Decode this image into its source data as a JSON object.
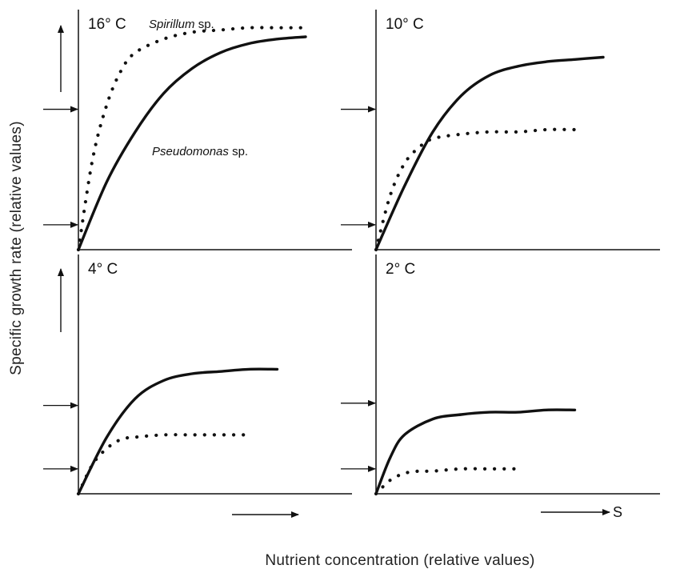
{
  "chart_data": {
    "type": "line",
    "ylabel": "Specific growth rate (relative values)",
    "xlabel": "Nutrient concentration (relative values)",
    "x_axis_symbol": "S",
    "xlim": [
      0,
      1
    ],
    "ylim": [
      0,
      1
    ],
    "panels": [
      {
        "title": "16° C",
        "annotations": [
          {
            "text": "Spirillum",
            "suffix": "sp.",
            "series": "dotted"
          },
          {
            "text": "Pseudomonas",
            "suffix": "sp.",
            "series": "solid"
          }
        ],
        "y_markers": [
          0.11,
          0.62
        ],
        "series": [
          {
            "style": "solid",
            "x": [
              0.0,
              0.1,
              0.2,
              0.3,
              0.4,
              0.5,
              0.6,
              0.7,
              0.8
            ],
            "y": [
              0.0,
              0.3,
              0.52,
              0.69,
              0.8,
              0.87,
              0.91,
              0.93,
              0.94
            ]
          },
          {
            "style": "dotted",
            "x": [
              0.0,
              0.05,
              0.1,
              0.15,
              0.2,
              0.3,
              0.4,
              0.5,
              0.6,
              0.7,
              0.8
            ],
            "y": [
              0.0,
              0.4,
              0.64,
              0.79,
              0.87,
              0.93,
              0.96,
              0.97,
              0.98,
              0.98,
              0.98
            ]
          }
        ]
      },
      {
        "title": "10° C",
        "annotations": [],
        "y_markers": [
          0.11,
          0.62
        ],
        "series": [
          {
            "style": "solid",
            "x": [
              0.0,
              0.1,
              0.2,
              0.3,
              0.4,
              0.5,
              0.6,
              0.7,
              0.8
            ],
            "y": [
              0.0,
              0.28,
              0.52,
              0.68,
              0.77,
              0.81,
              0.83,
              0.84,
              0.85
            ]
          },
          {
            "style": "dotted",
            "x": [
              0.0,
              0.05,
              0.1,
              0.15,
              0.2,
              0.3,
              0.4,
              0.5,
              0.6,
              0.7
            ],
            "y": [
              0.0,
              0.24,
              0.38,
              0.45,
              0.49,
              0.51,
              0.52,
              0.52,
              0.53,
              0.53
            ]
          }
        ]
      },
      {
        "title": "4° C",
        "annotations": [],
        "y_markers": [
          0.11,
          0.39
        ],
        "series": [
          {
            "style": "solid",
            "x": [
              0.0,
              0.1,
              0.2,
              0.3,
              0.4,
              0.5,
              0.6,
              0.7
            ],
            "y": [
              0.0,
              0.25,
              0.42,
              0.5,
              0.53,
              0.54,
              0.55,
              0.55
            ]
          },
          {
            "style": "dotted",
            "x": [
              0.0,
              0.05,
              0.1,
              0.15,
              0.2,
              0.3,
              0.4,
              0.5,
              0.6
            ],
            "y": [
              0.0,
              0.13,
              0.2,
              0.24,
              0.25,
              0.26,
              0.26,
              0.26,
              0.26
            ]
          }
        ]
      },
      {
        "title": "2° C",
        "annotations": [],
        "y_markers": [
          0.11,
          0.4
        ],
        "series": [
          {
            "style": "solid",
            "x": [
              0.0,
              0.05,
              0.1,
              0.2,
              0.3,
              0.4,
              0.5,
              0.6,
              0.7
            ],
            "y": [
              0.0,
              0.16,
              0.26,
              0.33,
              0.35,
              0.36,
              0.36,
              0.37,
              0.37
            ]
          },
          {
            "style": "dotted",
            "x": [
              0.0,
              0.05,
              0.1,
              0.15,
              0.2,
              0.3,
              0.4,
              0.5
            ],
            "y": [
              0.0,
              0.06,
              0.09,
              0.1,
              0.1,
              0.11,
              0.11,
              0.11
            ]
          }
        ]
      }
    ]
  },
  "colors": {
    "ink": "#111111",
    "background": "#ffffff"
  }
}
